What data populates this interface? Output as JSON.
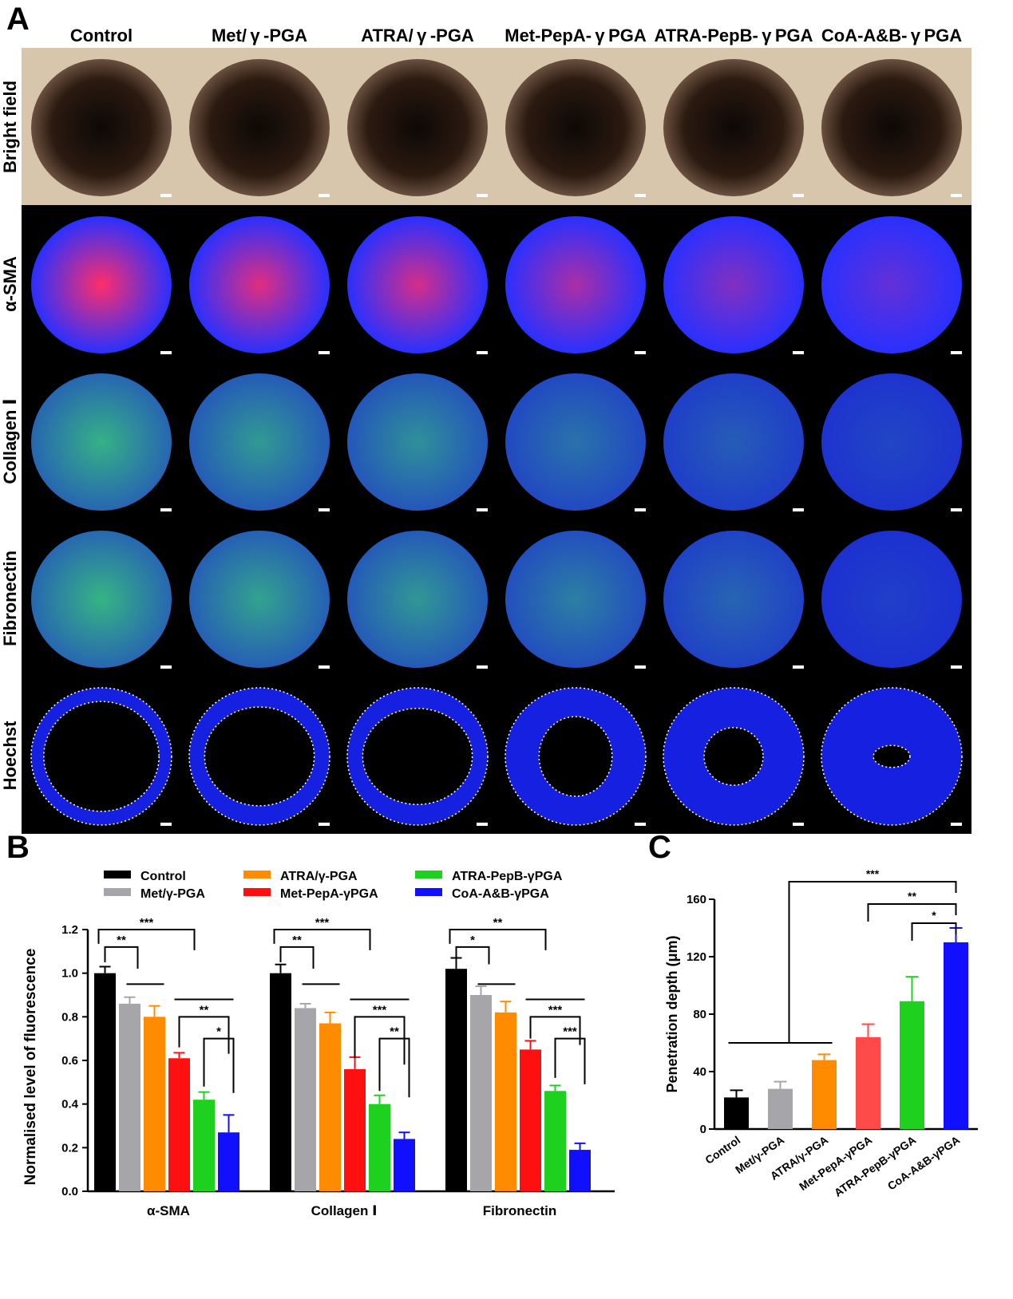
{
  "panels": {
    "a": "A",
    "b": "B",
    "c": "C"
  },
  "figure_a": {
    "columns": [
      "Control",
      "Met/ γ -PGA",
      "ATRA/ γ -PGA",
      "Met-PepA- γ PGA",
      "ATRA-PepB- γ PGA",
      "CoA-A&B- γ PGA"
    ],
    "rows": [
      "Bright field",
      "α-SMA",
      "Collagen Ⅰ",
      "Fibronectin",
      "Hoechst"
    ],
    "colors": {
      "bright_bg": "#d8c6ac",
      "dark_bg": "#000000",
      "red": "#ff2e6a",
      "blue": "#2a30ff",
      "green": "#3fe06a"
    },
    "red_level": [
      1.0,
      0.86,
      0.8,
      0.61,
      0.42,
      0.27
    ],
    "collagen_level": [
      1.0,
      0.84,
      0.77,
      0.56,
      0.4,
      0.24
    ],
    "fibronectin_level": [
      1.02,
      0.9,
      0.82,
      0.65,
      0.46,
      0.19
    ]
  },
  "chart_data": [
    {
      "type": "bar",
      "categories": [
        "α-SMA",
        "Collagen Ⅰ",
        "Fibronectin"
      ],
      "ylabel": "Normalised level of fluorescence",
      "ylim": [
        0,
        1.2
      ],
      "yticks": [
        "0.0",
        "0.2",
        "0.4",
        "0.6",
        "0.8",
        "1.0",
        "1.2"
      ],
      "legend": [
        "Control",
        "Met/γ-PGA",
        "ATRA/γ-PGA",
        "Met-PepA-γPGA",
        "ATRA-PepB-γPGA",
        "CoA-A&B-γPGA"
      ],
      "colors": [
        "#000000",
        "#a6a6aa",
        "#ff8c00",
        "#ff1010",
        "#1ed11e",
        "#1010ff"
      ],
      "series": [
        {
          "name": "Control",
          "values": [
            1.0,
            1.0,
            1.02
          ],
          "errors": [
            0.03,
            0.04,
            0.05
          ]
        },
        {
          "name": "Met/γ-PGA",
          "values": [
            0.86,
            0.84,
            0.9
          ],
          "errors": [
            0.03,
            0.02,
            0.04
          ]
        },
        {
          "name": "ATRA/γ-PGA",
          "values": [
            0.8,
            0.77,
            0.82
          ],
          "errors": [
            0.05,
            0.05,
            0.05
          ]
        },
        {
          "name": "Met-PepA-γPGA",
          "values": [
            0.61,
            0.56,
            0.65
          ],
          "errors": [
            0.025,
            0.055,
            0.04
          ]
        },
        {
          "name": "ATRA-PepB-γPGA",
          "values": [
            0.42,
            0.4,
            0.46
          ],
          "errors": [
            0.035,
            0.04,
            0.025
          ]
        },
        {
          "name": "CoA-A&B-γPGA",
          "values": [
            0.27,
            0.24,
            0.19
          ],
          "errors": [
            0.08,
            0.03,
            0.03
          ]
        }
      ],
      "significance": [
        "**",
        "***",
        "**",
        "*",
        "**",
        "***",
        "***",
        "**",
        "*",
        "**",
        "***",
        "***"
      ]
    },
    {
      "type": "bar",
      "categories": [
        "Control",
        "Met/γ-PGA",
        "ATRA/γ-PGA",
        "Met-PepA-γPGA",
        "ATRA-PepB-γPGA",
        "CoA-A&B-γPGA"
      ],
      "ylabel": "Penetration depth (μm)",
      "ylim": [
        0,
        160
      ],
      "yticks": [
        "0",
        "40",
        "80",
        "120",
        "160"
      ],
      "colors": [
        "#000000",
        "#a6a6aa",
        "#ff8c00",
        "#ff4a4a",
        "#1ed11e",
        "#1010ff"
      ],
      "values": [
        22,
        28,
        48,
        64,
        89,
        130
      ],
      "errors": [
        5,
        5,
        4,
        9,
        17,
        10
      ],
      "significance": [
        "***",
        "**",
        "*"
      ]
    }
  ]
}
